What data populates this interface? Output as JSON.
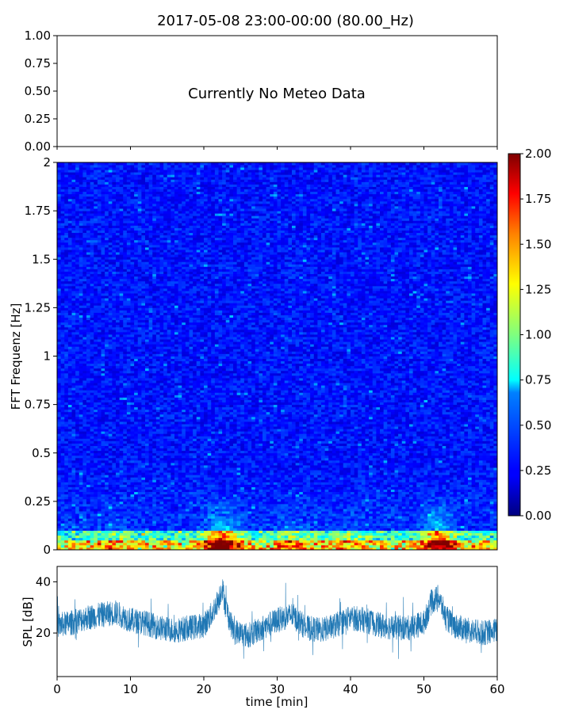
{
  "chart_data": [
    {
      "type": "line",
      "title": "2017-05-08 23:00-00:00 (80.00_Hz)",
      "annotation": "Currently No Meteo Data",
      "ylim": [
        0,
        1
      ],
      "yticks": [
        "0.00",
        "0.25",
        "0.50",
        "0.75",
        "1.00"
      ],
      "xticks_visible_labels": false,
      "series": []
    },
    {
      "type": "heatmap",
      "ylabel": "FFT Frequenz [Hz]",
      "xlim": [
        0,
        60
      ],
      "ylim": [
        0,
        2
      ],
      "yticks": [
        "0",
        "0.25",
        "0.5",
        "0.75",
        "1",
        "1.25",
        "1.5",
        "1.75",
        "2"
      ],
      "colormap": "jet",
      "colorbar": {
        "min": 0,
        "max": 2,
        "ticks": [
          "0.00",
          "0.25",
          "0.50",
          "0.75",
          "1.00",
          "1.25",
          "1.50",
          "1.75",
          "2.00"
        ]
      },
      "pattern": "background level ~0.2-0.4 across all frequencies; strong energy (1.5-2.0) below 0.05 Hz; elevated energy up to ~0.25 Hz around t=21-24 min and t=50-54 min"
    },
    {
      "type": "line",
      "ylabel": "SPL [dB]",
      "xlabel": "time [min]",
      "xlim": [
        0,
        60
      ],
      "ylim": [
        3,
        46
      ],
      "xticks": [
        "0",
        "10",
        "20",
        "30",
        "40",
        "50",
        "60"
      ],
      "yticks": [
        "20",
        "40"
      ],
      "series_color": "#1f77b4",
      "x": [
        0,
        2,
        4,
        6,
        8,
        10,
        12,
        14,
        16,
        18,
        20,
        21,
        22,
        22.5,
        23,
        24,
        26,
        28,
        30,
        32,
        34,
        36,
        38,
        40,
        42,
        44,
        46,
        48,
        50,
        51,
        52,
        53,
        54,
        56,
        58,
        60
      ],
      "y_mean": [
        23,
        24,
        26,
        27,
        28,
        25,
        24,
        22,
        21,
        22,
        23,
        27,
        33,
        38,
        30,
        21,
        19,
        22,
        25,
        27,
        22,
        21,
        23,
        26,
        25,
        23,
        22,
        22,
        24,
        32,
        34,
        26,
        23,
        21,
        20,
        21
      ],
      "y_spread": 5
    }
  ]
}
